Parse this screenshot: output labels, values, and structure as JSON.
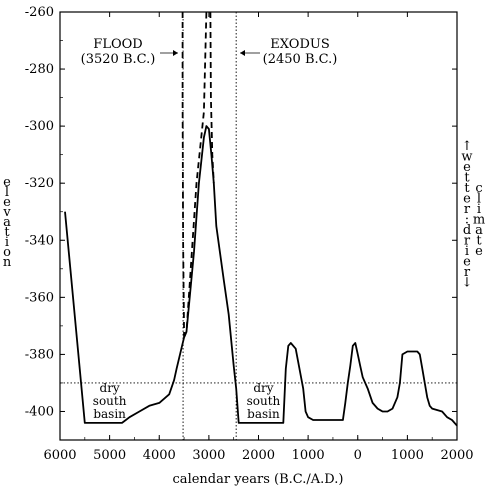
{
  "chart_data": {
    "type": "line",
    "xlabel": "calendar years (B.C./A.D.)",
    "ylabel": "elevation",
    "right_label_up": "wetter",
    "right_label_sep": ":",
    "right_label_down": "drier",
    "right_label_word": "climate",
    "xlim": [
      6000,
      -2000
    ],
    "ylim": [
      -410,
      -260
    ],
    "x_ticks": [
      6000,
      5000,
      4000,
      3000,
      2000,
      1000,
      0,
      -1000,
      -2000
    ],
    "x_tick_labels": [
      "6000",
      "5000",
      "4000",
      "3000",
      "2000",
      "1000",
      "0",
      "1000",
      "2000"
    ],
    "y_ticks": [
      -260,
      -280,
      -300,
      -320,
      -340,
      -360,
      -380,
      -400
    ],
    "y_tick_labels": [
      "-260",
      "-280",
      "-300",
      "-320",
      "-340",
      "-360",
      "-380",
      "-400"
    ],
    "reference_level": -390,
    "flood": {
      "year": 3520,
      "label": "FLOOD",
      "date": "(3520 B.C.)"
    },
    "exodus": {
      "year": 2450,
      "label": "EXODUS",
      "date": "(2450 B.C.)"
    },
    "basin_labels": [
      {
        "lines": [
          "dry",
          "south",
          "basin"
        ],
        "x": 5000
      },
      {
        "lines": [
          "dry",
          "south",
          "basin"
        ],
        "x": 1900
      }
    ],
    "series": [
      {
        "style": "solid",
        "points": [
          [
            5900,
            -330
          ],
          [
            5500,
            -404
          ],
          [
            4750,
            -404
          ],
          [
            4600,
            -402
          ],
          [
            4400,
            -400
          ],
          [
            4200,
            -398
          ],
          [
            4000,
            -397
          ],
          [
            3800,
            -394
          ],
          [
            3700,
            -389
          ],
          [
            3650,
            -385
          ],
          [
            3500,
            -374
          ],
          [
            3450,
            -372
          ],
          [
            3300,
            -344
          ],
          [
            3200,
            -320
          ],
          [
            3100,
            -304
          ],
          [
            3050,
            -300
          ],
          [
            3000,
            -301
          ],
          [
            2950,
            -310
          ],
          [
            2900,
            -320
          ],
          [
            2850,
            -335
          ],
          [
            2700,
            -354
          ],
          [
            2600,
            -366
          ],
          [
            2500,
            -384
          ],
          [
            2450,
            -392
          ],
          [
            2400,
            -404
          ],
          [
            1500,
            -404
          ],
          [
            1450,
            -385
          ],
          [
            1400,
            -377
          ],
          [
            1350,
            -376
          ],
          [
            1250,
            -378
          ],
          [
            1100,
            -392
          ],
          [
            1050,
            -400
          ],
          [
            1000,
            -402
          ],
          [
            900,
            -403
          ],
          [
            800,
            -403
          ],
          [
            300,
            -403
          ],
          [
            250,
            -397
          ],
          [
            200,
            -390
          ],
          [
            150,
            -384
          ],
          [
            100,
            -377
          ],
          [
            50,
            -376
          ],
          [
            0,
            -380
          ],
          [
            -50,
            -384
          ],
          [
            -100,
            -388
          ],
          [
            -200,
            -392
          ],
          [
            -300,
            -397
          ],
          [
            -400,
            -399
          ],
          [
            -500,
            -400
          ],
          [
            -600,
            -400
          ],
          [
            -700,
            -399
          ],
          [
            -800,
            -395
          ],
          [
            -850,
            -390
          ],
          [
            -900,
            -380
          ],
          [
            -1000,
            -379
          ],
          [
            -1100,
            -379
          ],
          [
            -1200,
            -379
          ],
          [
            -1250,
            -380
          ],
          [
            -1300,
            -385
          ],
          [
            -1400,
            -395
          ],
          [
            -1450,
            -398
          ],
          [
            -1500,
            -399
          ],
          [
            -1700,
            -400
          ],
          [
            -1800,
            -402
          ],
          [
            -1900,
            -403
          ],
          [
            -2000,
            -405
          ]
        ]
      },
      {
        "style": "dashed",
        "points": [
          [
            3530,
            -260
          ],
          [
            3530,
            -290
          ],
          [
            3520,
            -340
          ],
          [
            3500,
            -374
          ]
        ]
      },
      {
        "style": "dashed",
        "points": [
          [
            3500,
            -374
          ],
          [
            3450,
            -372
          ],
          [
            3250,
            -320
          ],
          [
            3100,
            -295
          ],
          [
            3050,
            -260
          ]
        ]
      },
      {
        "style": "dashed",
        "points": [
          [
            2970,
            -260
          ],
          [
            2960,
            -290
          ],
          [
            2930,
            -310
          ],
          [
            2900,
            -320
          ]
        ]
      }
    ]
  }
}
